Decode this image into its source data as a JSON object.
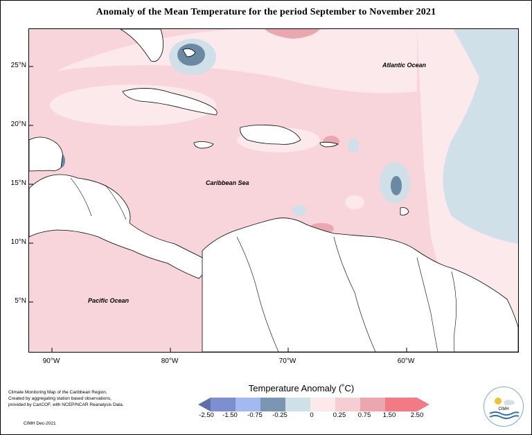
{
  "title": "Anomaly of the Mean Temperature for the period September to November 2021",
  "map": {
    "lat_labels": [
      "25°N",
      "20°N",
      "15°N",
      "10°N",
      "5°N"
    ],
    "lon_labels": [
      "90°W",
      "80°W",
      "70°W",
      "60°W"
    ],
    "ocean_labels": {
      "atlantic": "Atlantic Ocean",
      "caribbean": "Caribbean Sea",
      "pacific": "Pacific Ocean"
    },
    "colors": {
      "background_anomaly": "#f7d5da",
      "very_light": "#fbe9ec",
      "mid_pink": "#eaa7af",
      "cool_light": "#cfe0e8",
      "cool_mid": "#8aa6ba",
      "cool_dark": "#5f7f9a",
      "land": "#ffffff"
    }
  },
  "legend": {
    "title": "Temperature Anomaly (˚C)",
    "ticks": [
      "-2.50",
      "-1.50",
      "-0.75",
      "-0.25",
      "0",
      "0.25",
      "0.75",
      "1.50",
      "2.50"
    ],
    "colors": [
      "#5d6fa8",
      "#7d8fd0",
      "#a4b9ef",
      "#7b95b3",
      "#cfe0e8",
      "#fde9ec",
      "#f6cdd3",
      "#eaa7af",
      "#f27a85"
    ]
  },
  "credit": {
    "line1": "Climate Monitoring Map of the Caribbean Region.",
    "line2": "Created by aggregating station based observations,",
    "line3": "provided by CariCOF, with NCEP/NCAR Reanalysis Data.",
    "date": "CIMH Dec-2021"
  },
  "logo": {
    "text": "CIMH"
  }
}
